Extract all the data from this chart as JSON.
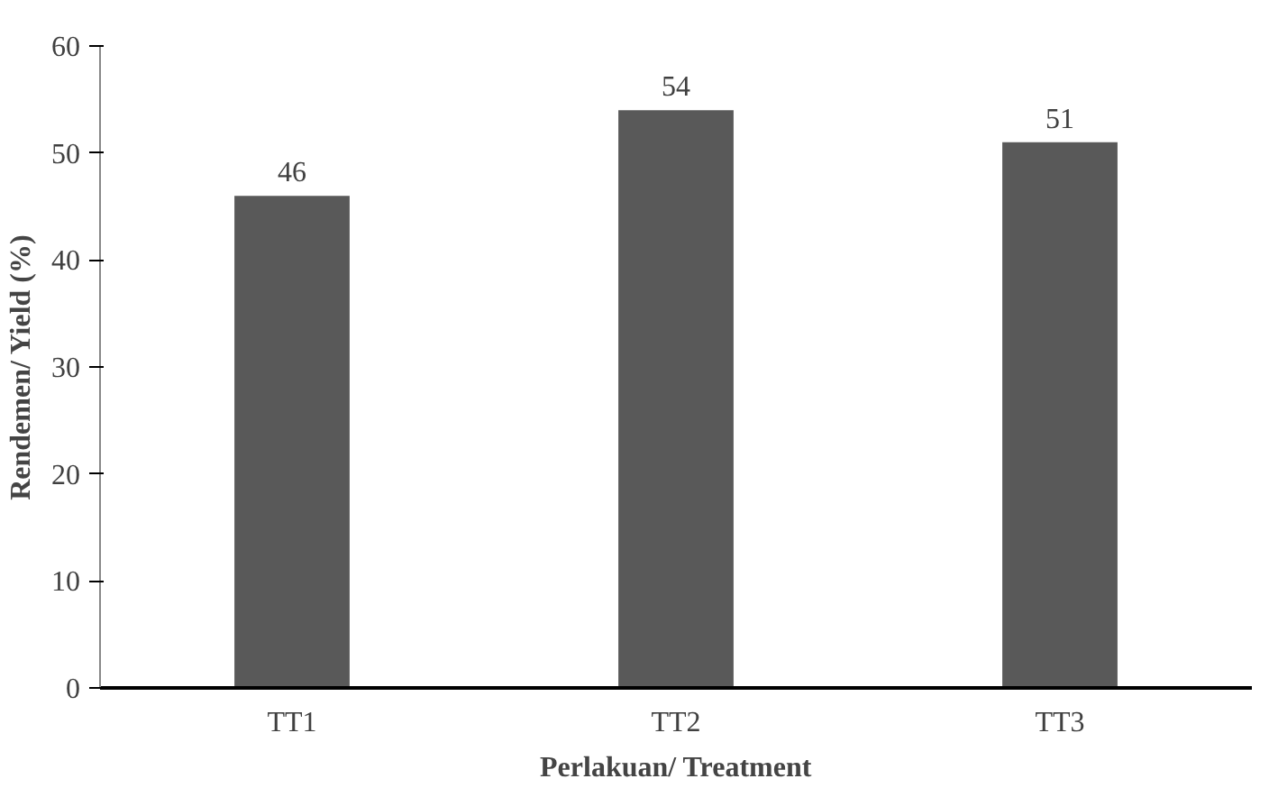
{
  "chart_data": {
    "type": "bar",
    "xlabel": "Perlakuan/ Treatment",
    "ylabel": "Rendemen/ Yield (%)",
    "categories": [
      "TT1",
      "TT2",
      "TT3"
    ],
    "values": [
      46,
      54,
      51
    ],
    "color": "#595959",
    "ylim": [
      0,
      60
    ],
    "yticks": [
      0,
      10,
      20,
      30,
      40,
      50,
      60
    ],
    "grid": false,
    "data_labels": true
  }
}
